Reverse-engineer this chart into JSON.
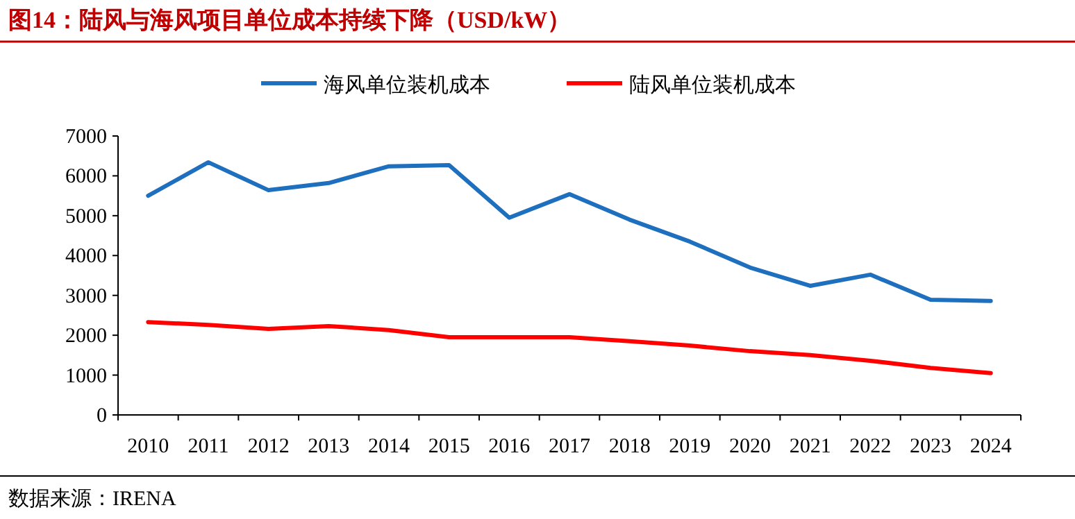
{
  "chart_data": {
    "type": "line",
    "title": "图14：陆风与海风项目单位成本持续下降（USD/kW）",
    "categories": [
      "2010",
      "2011",
      "2012",
      "2013",
      "2014",
      "2015",
      "2016",
      "2017",
      "2018",
      "2019",
      "2020",
      "2021",
      "2022",
      "2023",
      "2024"
    ],
    "series": [
      {
        "name": "海风单位装机成本",
        "color": "#1f6fbf",
        "values": [
          5500,
          6340,
          5640,
          5820,
          6240,
          6270,
          4950,
          5540,
          4900,
          4350,
          3700,
          3240,
          3520,
          2890,
          2860
        ]
      },
      {
        "name": "陆风单位装机成本",
        "color": "#ff0000",
        "values": [
          2330,
          2260,
          2160,
          2230,
          2130,
          1950,
          1950,
          1950,
          1850,
          1740,
          1600,
          1500,
          1360,
          1180,
          1050
        ]
      }
    ],
    "ylim": [
      0,
      7000
    ],
    "yticks": [
      0,
      1000,
      2000,
      3000,
      4000,
      5000,
      6000,
      7000
    ],
    "legend": "top",
    "marker": "none",
    "line_style": "solid",
    "annotations": [
      "数据来源：IRENA"
    ]
  }
}
